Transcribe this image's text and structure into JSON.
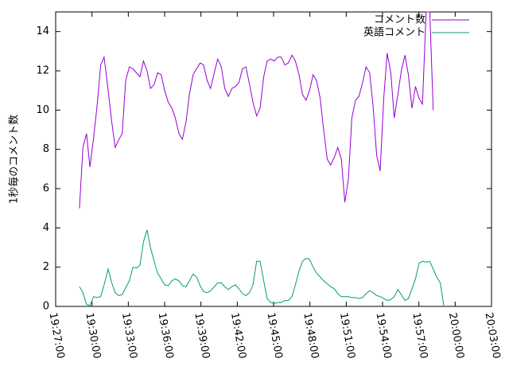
{
  "chart_data": {
    "type": "line",
    "title": "",
    "xlabel": "",
    "ylabel": "1秒毎のコメント数",
    "xlim": [
      "19:27:00",
      "20:03:00"
    ],
    "ylim": [
      0,
      15
    ],
    "x_ticks": [
      "19:27:00",
      "19:30:00",
      "19:33:00",
      "19:36:00",
      "19:39:00",
      "19:42:00",
      "19:45:00",
      "19:48:00",
      "19:51:00",
      "19:54:00",
      "19:57:00",
      "20:00:00",
      "20:03:00"
    ],
    "y_ticks": [
      0,
      2,
      4,
      6,
      8,
      10,
      12,
      14
    ],
    "grid": false,
    "legend_position": "top-right",
    "series": [
      {
        "name": "コメント数",
        "color": "#9400d3",
        "points": [
          [
            "19:28:58",
            5.0
          ],
          [
            "19:29:15",
            8.1
          ],
          [
            "19:29:33",
            8.8
          ],
          [
            "19:29:50",
            7.1
          ],
          [
            "19:30:08",
            8.6
          ],
          [
            "19:30:25",
            10.2
          ],
          [
            "19:30:43",
            12.3
          ],
          [
            "19:31:00",
            12.7
          ],
          [
            "19:31:20",
            11.0
          ],
          [
            "19:31:38",
            9.4
          ],
          [
            "19:31:55",
            8.1
          ],
          [
            "19:32:13",
            8.5
          ],
          [
            "19:32:30",
            8.8
          ],
          [
            "19:32:47",
            11.5
          ],
          [
            "19:33:05",
            12.2
          ],
          [
            "19:33:23",
            12.1
          ],
          [
            "19:33:40",
            11.9
          ],
          [
            "19:33:58",
            11.7
          ],
          [
            "19:34:15",
            12.5
          ],
          [
            "19:34:33",
            12.0
          ],
          [
            "19:34:50",
            11.1
          ],
          [
            "19:35:08",
            11.3
          ],
          [
            "19:35:25",
            11.9
          ],
          [
            "19:35:43",
            11.8
          ],
          [
            "19:36:00",
            11.0
          ],
          [
            "19:36:18",
            10.4
          ],
          [
            "19:36:36",
            10.1
          ],
          [
            "19:36:53",
            9.6
          ],
          [
            "19:37:11",
            8.8
          ],
          [
            "19:37:28",
            8.5
          ],
          [
            "19:37:46",
            9.4
          ],
          [
            "19:38:03",
            10.8
          ],
          [
            "19:38:21",
            11.8
          ],
          [
            "19:38:38",
            12.1
          ],
          [
            "19:38:56",
            12.4
          ],
          [
            "19:39:13",
            12.3
          ],
          [
            "19:39:31",
            11.5
          ],
          [
            "19:39:48",
            11.1
          ],
          [
            "19:40:06",
            11.9
          ],
          [
            "19:40:23",
            12.6
          ],
          [
            "19:40:41",
            12.2
          ],
          [
            "19:40:58",
            11.1
          ],
          [
            "19:41:16",
            10.7
          ],
          [
            "19:41:33",
            11.1
          ],
          [
            "19:41:51",
            11.2
          ],
          [
            "19:42:08",
            11.4
          ],
          [
            "19:42:26",
            12.1
          ],
          [
            "19:42:43",
            12.2
          ],
          [
            "19:43:01",
            11.3
          ],
          [
            "19:43:18",
            10.4
          ],
          [
            "19:43:36",
            9.7
          ],
          [
            "19:43:53",
            10.1
          ],
          [
            "19:44:11",
            11.7
          ],
          [
            "19:44:28",
            12.5
          ],
          [
            "19:44:46",
            12.6
          ],
          [
            "19:45:03",
            12.5
          ],
          [
            "19:45:21",
            12.7
          ],
          [
            "19:45:38",
            12.7
          ],
          [
            "19:45:56",
            12.3
          ],
          [
            "19:46:13",
            12.4
          ],
          [
            "19:46:31",
            12.8
          ],
          [
            "19:46:48",
            12.5
          ],
          [
            "19:47:06",
            11.8
          ],
          [
            "19:47:23",
            10.8
          ],
          [
            "19:47:41",
            10.5
          ],
          [
            "19:47:58",
            11.0
          ],
          [
            "19:48:16",
            11.8
          ],
          [
            "19:48:33",
            11.5
          ],
          [
            "19:48:51",
            10.6
          ],
          [
            "19:49:08",
            9.0
          ],
          [
            "19:49:26",
            7.5
          ],
          [
            "19:49:43",
            7.2
          ],
          [
            "19:50:01",
            7.6
          ],
          [
            "19:50:18",
            8.1
          ],
          [
            "19:50:36",
            7.5
          ],
          [
            "19:50:53",
            5.3
          ],
          [
            "19:51:11",
            6.5
          ],
          [
            "19:51:28",
            9.6
          ],
          [
            "19:51:46",
            10.5
          ],
          [
            "19:52:03",
            10.7
          ],
          [
            "19:52:21",
            11.4
          ],
          [
            "19:52:38",
            12.2
          ],
          [
            "19:52:56",
            11.9
          ],
          [
            "19:53:13",
            10.2
          ],
          [
            "19:53:31",
            7.7
          ],
          [
            "19:53:48",
            6.9
          ],
          [
            "19:54:06",
            10.6
          ],
          [
            "19:54:23",
            12.9
          ],
          [
            "19:54:41",
            11.9
          ],
          [
            "19:54:58",
            9.6
          ],
          [
            "19:55:16",
            10.8
          ],
          [
            "19:55:33",
            12.0
          ],
          [
            "19:55:51",
            12.8
          ],
          [
            "19:56:08",
            11.8
          ],
          [
            "19:56:26",
            10.1
          ],
          [
            "19:56:43",
            11.2
          ],
          [
            "19:57:01",
            10.6
          ],
          [
            "19:57:18",
            10.3
          ],
          [
            "19:57:36",
            15.0
          ],
          [
            "19:57:54",
            15.0
          ],
          [
            "19:58:11",
            10.0
          ]
        ]
      },
      {
        "name": "英語コメント",
        "color": "#009e73",
        "points": [
          [
            "19:28:58",
            1.0
          ],
          [
            "19:29:15",
            0.7
          ],
          [
            "19:29:33",
            0.1
          ],
          [
            "19:29:50",
            0.05
          ],
          [
            "19:30:08",
            0.5
          ],
          [
            "19:30:25",
            0.45
          ],
          [
            "19:30:43",
            0.5
          ],
          [
            "19:31:00",
            1.1
          ],
          [
            "19:31:20",
            1.9
          ],
          [
            "19:31:38",
            1.2
          ],
          [
            "19:31:55",
            0.7
          ],
          [
            "19:32:13",
            0.55
          ],
          [
            "19:32:30",
            0.6
          ],
          [
            "19:32:47",
            0.95
          ],
          [
            "19:33:05",
            1.3
          ],
          [
            "19:33:23",
            2.0
          ],
          [
            "19:33:40",
            1.95
          ],
          [
            "19:33:58",
            2.1
          ],
          [
            "19:34:15",
            3.3
          ],
          [
            "19:34:33",
            3.9
          ],
          [
            "19:34:50",
            3.0
          ],
          [
            "19:35:08",
            2.3
          ],
          [
            "19:35:25",
            1.7
          ],
          [
            "19:35:43",
            1.4
          ],
          [
            "19:36:00",
            1.1
          ],
          [
            "19:36:18",
            1.05
          ],
          [
            "19:36:36",
            1.3
          ],
          [
            "19:36:53",
            1.4
          ],
          [
            "19:37:11",
            1.3
          ],
          [
            "19:37:28",
            1.05
          ],
          [
            "19:37:46",
            1.0
          ],
          [
            "19:38:03",
            1.3
          ],
          [
            "19:38:21",
            1.65
          ],
          [
            "19:38:38",
            1.5
          ],
          [
            "19:38:56",
            1.05
          ],
          [
            "19:39:13",
            0.75
          ],
          [
            "19:39:31",
            0.7
          ],
          [
            "19:39:48",
            0.8
          ],
          [
            "19:40:06",
            1.0
          ],
          [
            "19:40:23",
            1.2
          ],
          [
            "19:40:41",
            1.2
          ],
          [
            "19:40:58",
            1.0
          ],
          [
            "19:41:16",
            0.85
          ],
          [
            "19:41:33",
            1.0
          ],
          [
            "19:41:51",
            1.1
          ],
          [
            "19:42:08",
            0.9
          ],
          [
            "19:42:26",
            0.65
          ],
          [
            "19:42:43",
            0.55
          ],
          [
            "19:43:01",
            0.7
          ],
          [
            "19:43:18",
            1.1
          ],
          [
            "19:43:36",
            2.3
          ],
          [
            "19:43:53",
            2.3
          ],
          [
            "19:44:11",
            1.3
          ],
          [
            "19:44:28",
            0.4
          ],
          [
            "19:44:46",
            0.2
          ],
          [
            "19:45:03",
            0.15
          ],
          [
            "19:45:21",
            0.2
          ],
          [
            "19:45:38",
            0.2
          ],
          [
            "19:45:56",
            0.3
          ],
          [
            "19:46:13",
            0.3
          ],
          [
            "19:46:31",
            0.5
          ],
          [
            "19:46:48",
            1.1
          ],
          [
            "19:47:06",
            1.8
          ],
          [
            "19:47:23",
            2.3
          ],
          [
            "19:47:41",
            2.45
          ],
          [
            "19:47:58",
            2.4
          ],
          [
            "19:48:16",
            2.0
          ],
          [
            "19:48:33",
            1.7
          ],
          [
            "19:48:51",
            1.5
          ],
          [
            "19:49:08",
            1.3
          ],
          [
            "19:49:26",
            1.15
          ],
          [
            "19:49:43",
            1.0
          ],
          [
            "19:50:01",
            0.9
          ],
          [
            "19:50:18",
            0.65
          ],
          [
            "19:50:36",
            0.5
          ],
          [
            "19:50:53",
            0.5
          ],
          [
            "19:51:11",
            0.5
          ],
          [
            "19:51:28",
            0.45
          ],
          [
            "19:51:46",
            0.45
          ],
          [
            "19:52:03",
            0.4
          ],
          [
            "19:52:21",
            0.45
          ],
          [
            "19:52:38",
            0.65
          ],
          [
            "19:52:56",
            0.8
          ],
          [
            "19:53:13",
            0.7
          ],
          [
            "19:53:31",
            0.55
          ],
          [
            "19:53:48",
            0.5
          ],
          [
            "19:54:06",
            0.4
          ],
          [
            "19:54:23",
            0.3
          ],
          [
            "19:54:41",
            0.35
          ],
          [
            "19:54:58",
            0.5
          ],
          [
            "19:55:16",
            0.85
          ],
          [
            "19:55:33",
            0.6
          ],
          [
            "19:55:51",
            0.3
          ],
          [
            "19:56:08",
            0.4
          ],
          [
            "19:56:26",
            0.9
          ],
          [
            "19:56:43",
            1.4
          ],
          [
            "19:57:01",
            2.2
          ],
          [
            "19:57:18",
            2.3
          ],
          [
            "19:57:36",
            2.25
          ],
          [
            "19:57:54",
            2.3
          ],
          [
            "19:58:11",
            1.9
          ],
          [
            "19:58:28",
            1.5
          ],
          [
            "19:58:46",
            1.2
          ],
          [
            "19:59:04",
            0.0
          ]
        ]
      }
    ]
  }
}
